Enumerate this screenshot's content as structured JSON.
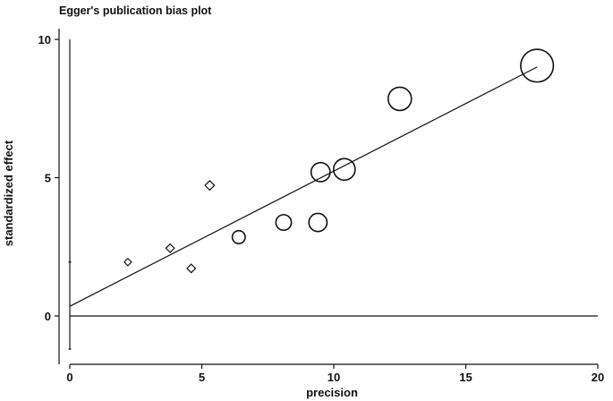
{
  "chart_data": {
    "type": "scatter",
    "title": "Egger's publication bias plot",
    "xlabel": "precision",
    "ylabel": "standardized effect",
    "xlim": [
      0,
      20
    ],
    "ylim": [
      -1.3,
      10
    ],
    "x_ticks": [
      "0",
      "5",
      "10",
      "15",
      "20"
    ],
    "x_tick_values": [
      0,
      5,
      10,
      15,
      20
    ],
    "y_ticks": [
      "0",
      "5",
      "10"
    ],
    "y_tick_values": [
      0,
      5,
      10
    ],
    "grid": false,
    "reference_line_y": 0,
    "ci_bar": {
      "x": 0,
      "y_low": -1.2,
      "y_high": 10
    },
    "regression_line": {
      "x_start": 0,
      "y_start": 0.35,
      "x_end": 17.7,
      "y_end": 9.0
    },
    "points": [
      {
        "x": 2.2,
        "y": 1.95,
        "marker": "diamond",
        "weight": 0.6
      },
      {
        "x": 3.8,
        "y": 2.45,
        "marker": "diamond",
        "weight": 0.9
      },
      {
        "x": 4.6,
        "y": 1.72,
        "marker": "diamond",
        "weight": 0.9
      },
      {
        "x": 5.3,
        "y": 4.72,
        "marker": "diamond",
        "weight": 1.1
      },
      {
        "x": 6.4,
        "y": 2.85,
        "marker": "circle",
        "weight": 1.3
      },
      {
        "x": 8.1,
        "y": 3.38,
        "marker": "circle",
        "weight": 1.6
      },
      {
        "x": 9.4,
        "y": 3.38,
        "marker": "circle",
        "weight": 1.9
      },
      {
        "x": 9.5,
        "y": 5.2,
        "marker": "circle",
        "weight": 2.0
      },
      {
        "x": 10.4,
        "y": 5.3,
        "marker": "circle",
        "weight": 2.3
      },
      {
        "x": 12.5,
        "y": 7.85,
        "marker": "circle",
        "weight": 2.5
      },
      {
        "x": 17.7,
        "y": 9.05,
        "marker": "circle",
        "weight": 3.6
      }
    ]
  }
}
